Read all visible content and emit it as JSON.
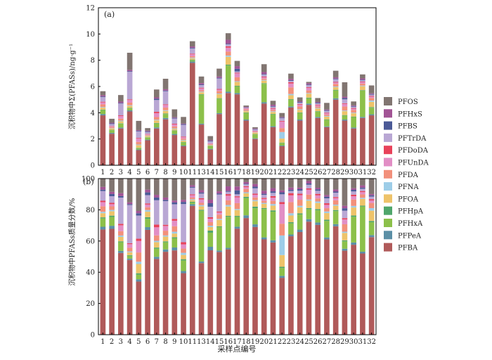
{
  "legend_order": [
    "PFOS",
    "PFHxS",
    "PFBS",
    "PFTrDA",
    "PFDoDA",
    "PFUnDA",
    "PFDA",
    "PFNA",
    "PFOA",
    "PFHpA",
    "PFHxA",
    "PFPeA",
    "PFBA"
  ],
  "colors": {
    "PFBA": "#b05a5a",
    "PFPeA": "#5b8fa6",
    "PFHxA": "#8cc04a",
    "PFHpA": "#4fa66b",
    "PFOA": "#eec36a",
    "PFNA": "#9dcde8",
    "PFDA": "#f2907b",
    "PFUnDA": "#e28ec5",
    "PFDoDA": "#e8425a",
    "PFTrDA": "#b9a7d4",
    "PFBS": "#4b5a97",
    "PFHxS": "#a25495",
    "PFOS": "#817571"
  },
  "xlabel": "采样点编号",
  "chart_data": [
    {
      "type": "bar",
      "stacked": true,
      "panel_label": "(a)",
      "ylabel": "沉积物中Σ(PFASs)/ng·g⁻¹",
      "ylim": [
        0,
        12
      ],
      "yticks": [
        0,
        2,
        4,
        6,
        8,
        10,
        12
      ],
      "categories": [
        "1",
        "2",
        "3",
        "4",
        "5",
        "6",
        "7",
        "8",
        "9",
        "10",
        "11",
        "13",
        "14",
        "15",
        "16",
        "17",
        "18",
        "19",
        "20",
        "21",
        "22",
        "23",
        "24",
        "25",
        "26",
        "27",
        "28",
        "29",
        "30",
        "31",
        "32"
      ],
      "series": [
        {
          "name": "PFBA",
          "values": [
            3.8,
            2.4,
            2.8,
            4.1,
            1.15,
            1.9,
            2.8,
            3.5,
            2.3,
            1.45,
            7.8,
            3.1,
            1.2,
            3.9,
            5.5,
            5.4,
            3.4,
            2.0,
            4.7,
            2.9,
            1.45,
            4.4,
            3.4,
            4.6,
            3.6,
            2.9,
            5.0,
            3.4,
            2.8,
            3.6,
            3.8
          ]
        },
        {
          "name": "PFPeA",
          "values": [
            0.1,
            0.07,
            0.07,
            0.08,
            0.05,
            0.05,
            0.08,
            0.1,
            0.08,
            0.05,
            0.1,
            0.07,
            0.05,
            0.07,
            0.1,
            0.1,
            0.08,
            0.05,
            0.1,
            0.07,
            0.05,
            0.08,
            0.08,
            0.1,
            0.08,
            0.06,
            0.1,
            0.08,
            0.07,
            0.08,
            0.08
          ]
        },
        {
          "name": "PFHxA",
          "values": [
            0.3,
            0.2,
            0.3,
            0.15,
            0.1,
            0.15,
            0.3,
            0.3,
            0.25,
            0.25,
            0.1,
            2.2,
            0.2,
            1.1,
            2.0,
            0.5,
            0.5,
            0.3,
            1.4,
            0.9,
            0.2,
            0.5,
            0.5,
            0.4,
            0.4,
            0.5,
            0.6,
            0.3,
            0.8,
            2.0,
            0.5
          ]
        },
        {
          "name": "PFHpA",
          "values": [
            0.04,
            0.03,
            0.03,
            0.04,
            0.03,
            0.03,
            0.04,
            0.04,
            0.03,
            0.03,
            0.05,
            0.04,
            0.03,
            0.04,
            0.06,
            0.05,
            0.04,
            0.03,
            0.05,
            0.04,
            0.03,
            0.05,
            0.04,
            0.05,
            0.04,
            0.04,
            0.05,
            0.04,
            0.04,
            0.04,
            0.05
          ]
        },
        {
          "name": "PFOA",
          "values": [
            0.15,
            0.1,
            0.15,
            0.15,
            0.2,
            0.1,
            0.2,
            0.2,
            0.1,
            0.1,
            0.1,
            0.15,
            0.05,
            0.3,
            0.6,
            0.3,
            0.1,
            0.1,
            0.2,
            0.15,
            0.3,
            0.3,
            0.2,
            0.3,
            0.2,
            0.2,
            0.2,
            0.3,
            0.25,
            0.3,
            0.4
          ]
        },
        {
          "name": "PFNA",
          "values": [
            0.05,
            0.03,
            0.05,
            0.05,
            0.05,
            0.03,
            0.05,
            0.05,
            0.05,
            0.05,
            0.05,
            0.05,
            0.02,
            0.05,
            0.1,
            0.05,
            0.03,
            0.02,
            0.05,
            0.05,
            0.5,
            0.1,
            0.05,
            0.05,
            0.05,
            0.05,
            0.05,
            0.05,
            0.05,
            0.05,
            0.1
          ]
        },
        {
          "name": "PFDA",
          "values": [
            0.2,
            0.08,
            0.15,
            0.2,
            0.2,
            0.05,
            0.2,
            0.2,
            0.15,
            0.1,
            0.1,
            0.1,
            0.05,
            0.2,
            0.3,
            0.3,
            0.1,
            0.05,
            0.1,
            0.1,
            0.3,
            0.5,
            0.2,
            0.2,
            0.1,
            0.1,
            0.2,
            0.3,
            0.2,
            0.15,
            0.2
          ]
        },
        {
          "name": "PFUnDA",
          "values": [
            0.15,
            0.05,
            0.2,
            0.2,
            0.25,
            0.05,
            0.3,
            0.2,
            0.15,
            0.1,
            0.15,
            0.15,
            0.05,
            0.1,
            0.3,
            0.3,
            0.05,
            0.05,
            0.1,
            0.1,
            0.5,
            0.3,
            0.15,
            0.2,
            0.1,
            0.1,
            0.1,
            0.2,
            0.1,
            0.1,
            0.1
          ]
        },
        {
          "name": "PFDoDA",
          "values": [
            0.05,
            0.03,
            0.05,
            0.05,
            0.05,
            0.02,
            0.1,
            0.05,
            0.05,
            0.05,
            0.05,
            0.05,
            0.02,
            0.05,
            0.1,
            0.05,
            0.03,
            0.02,
            0.05,
            0.05,
            0.05,
            0.1,
            0.05,
            0.05,
            0.05,
            0.05,
            0.05,
            0.05,
            0.05,
            0.05,
            0.05
          ]
        },
        {
          "name": "PFTrDA",
          "values": [
            0.35,
            0.15,
            0.9,
            2.1,
            0.5,
            0.15,
            0.9,
            1.0,
            0.4,
            0.9,
            0.4,
            0.2,
            0.15,
            0.8,
            0.15,
            0.1,
            0.05,
            0.1,
            0.15,
            0.1,
            0.2,
            0.1,
            0.1,
            0.15,
            0.1,
            0.15,
            0.2,
            0.3,
            0.1,
            0.1,
            0.1
          ]
        },
        {
          "name": "PFBS",
          "values": [
            0.05,
            0.05,
            0.05,
            0.05,
            0.05,
            0.05,
            0.1,
            0.05,
            0.05,
            0.05,
            0.05,
            0.05,
            0.05,
            0.05,
            0.05,
            0.2,
            0.02,
            0.03,
            0.05,
            0.05,
            0.05,
            0.05,
            0.05,
            0.05,
            0.05,
            0.05,
            0.05,
            0.1,
            0.05,
            0.05,
            0.05
          ]
        },
        {
          "name": "PFHxS",
          "values": [
            0.1,
            0.05,
            0.1,
            0.1,
            0.05,
            0.05,
            0.1,
            0.1,
            0.05,
            0.05,
            0.1,
            0.1,
            0.05,
            0.1,
            0.3,
            0.2,
            0.05,
            0.05,
            0.15,
            0.1,
            0.05,
            0.1,
            0.05,
            0.1,
            0.05,
            0.05,
            0.1,
            0.1,
            0.05,
            0.1,
            0.05
          ]
        },
        {
          "name": "PFOS",
          "values": [
            0.3,
            0.3,
            0.5,
            1.3,
            0.7,
            0.2,
            0.6,
            0.8,
            0.6,
            0.5,
            0.4,
            0.5,
            0.3,
            0.6,
            0.5,
            0.4,
            0.1,
            0.1,
            0.6,
            0.3,
            0.3,
            0.4,
            0.3,
            0.1,
            0.3,
            0.5,
            0.5,
            1.1,
            0.3,
            0.3,
            0.6
          ]
        }
      ]
    },
    {
      "type": "bar",
      "stacked": true,
      "normalized": true,
      "panel_label": "(b)",
      "ylabel": "沉积物中PFASs质量分数/%",
      "ylim": [
        0,
        100
      ],
      "yticks": [
        0,
        20,
        40,
        60,
        80,
        100
      ],
      "categories": [
        "1",
        "2",
        "3",
        "4",
        "5",
        "6",
        "7",
        "8",
        "9",
        "10",
        "11",
        "13",
        "14",
        "15",
        "16",
        "17",
        "18",
        "19",
        "20",
        "21",
        "22",
        "23",
        "24",
        "25",
        "26",
        "27",
        "28",
        "29",
        "30",
        "31",
        "32"
      ],
      "series_source": "chart_data.0.series"
    }
  ]
}
